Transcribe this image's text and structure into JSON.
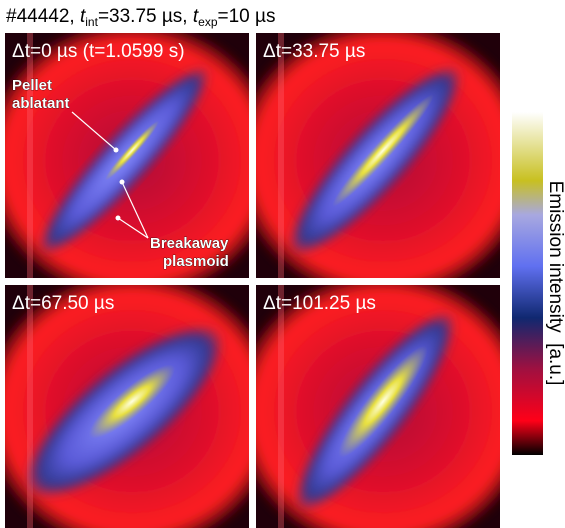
{
  "title": {
    "part1": "#44442, ",
    "t1": "t",
    "sub1": "int",
    "part2": "=33.75 µs, ",
    "t2": "t",
    "sub2": "exp",
    "part3": "=10 µs"
  },
  "panels": [
    "Δt=0 µs (t=1.0599 s)",
    "Δt=33.75 µs",
    "Δt=67.50 µs",
    "Δt=101.25 µs"
  ],
  "annotations": {
    "pellet": [
      "Pellet",
      "ablatant"
    ],
    "plasmoid": [
      "Breakaway",
      "plasmoid"
    ]
  },
  "colorbar_label": "Emission intensity  [a.u.]"
}
